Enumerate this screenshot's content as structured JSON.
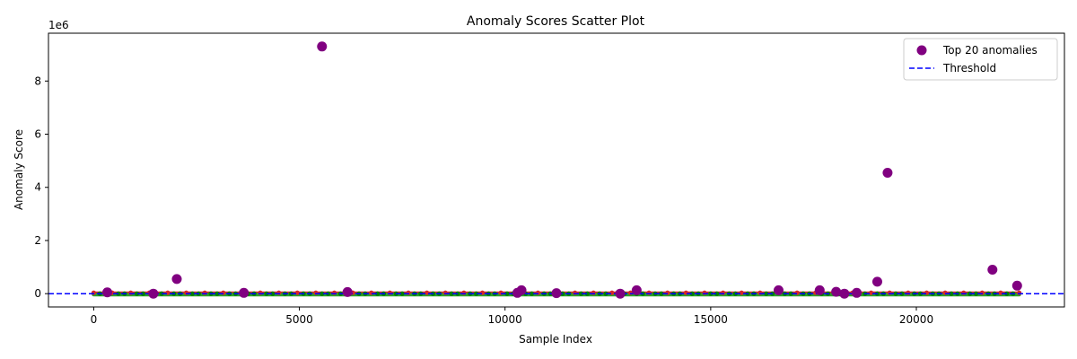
{
  "chart_data": {
    "type": "scatter",
    "title": "Anomaly Scores Scatter Plot",
    "xlabel": "Sample Index",
    "ylabel": "Anomaly Score",
    "y_offset_label": "1e6",
    "y_scale": 1000000,
    "xlim": [
      -1100,
      23600
    ],
    "ylim": [
      -500000,
      9800000
    ],
    "x_ticks": [
      0,
      5000,
      10000,
      15000,
      20000
    ],
    "x_tick_labels": [
      "0",
      "5000",
      "10000",
      "15000",
      "20000"
    ],
    "y_ticks": [
      0,
      2000000,
      4000000,
      6000000,
      8000000
    ],
    "y_tick_labels": [
      "0",
      "2",
      "4",
      "6",
      "8"
    ],
    "grid": false,
    "legend_position": "top-right",
    "baseline": {
      "x_range": [
        0,
        22500
      ],
      "y_value": 0,
      "colors": [
        "#2ca02c",
        "#d62728",
        "#008000"
      ]
    },
    "series": [
      {
        "name": "Top 20 anomalies",
        "marker": "circle",
        "color": "#800080",
        "points": [
          {
            "x": 330,
            "y": 50000
          },
          {
            "x": 1450,
            "y": 0
          },
          {
            "x": 2020,
            "y": 550000
          },
          {
            "x": 3650,
            "y": 30000
          },
          {
            "x": 5550,
            "y": 9300000
          },
          {
            "x": 6170,
            "y": 60000
          },
          {
            "x": 10300,
            "y": 30000
          },
          {
            "x": 10400,
            "y": 130000
          },
          {
            "x": 11250,
            "y": 20000
          },
          {
            "x": 12800,
            "y": 0
          },
          {
            "x": 13200,
            "y": 130000
          },
          {
            "x": 16650,
            "y": 130000
          },
          {
            "x": 17650,
            "y": 130000
          },
          {
            "x": 18050,
            "y": 70000
          },
          {
            "x": 18250,
            "y": 0
          },
          {
            "x": 18550,
            "y": 30000
          },
          {
            "x": 19050,
            "y": 450000
          },
          {
            "x": 19300,
            "y": 4550000
          },
          {
            "x": 21850,
            "y": 900000
          },
          {
            "x": 22450,
            "y": 300000
          }
        ]
      },
      {
        "name": "Threshold",
        "type": "hline",
        "y": 0,
        "color": "#0000ff",
        "style": "dashed"
      }
    ]
  }
}
